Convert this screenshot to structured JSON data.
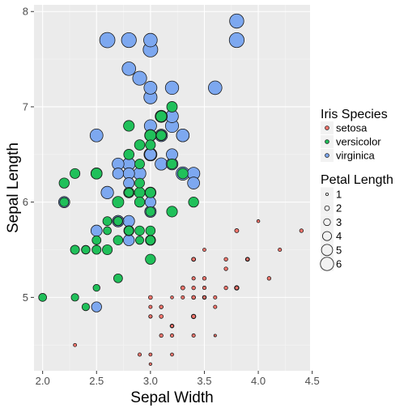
{
  "chart_data": {
    "type": "scatter",
    "title": "",
    "xlabel": "Sepal Width",
    "ylabel": "Sepal Length",
    "xlim": [
      1.92,
      4.48
    ],
    "ylim": [
      4.23,
      8.07
    ],
    "x_ticks": [
      "2.0",
      "2.5",
      "3.0",
      "3.5",
      "4.0",
      "4.5"
    ],
    "y_ticks": [
      "5",
      "6",
      "7",
      "8"
    ],
    "grid": true,
    "panel_background": "#ebebeb",
    "legend_placement": "right",
    "size_by": "Petal Length",
    "fill_legend": {
      "title": "Iris Species",
      "entries": [
        "setosa",
        "versicolor",
        "virginica"
      ]
    },
    "size_legend": {
      "title": "Petal Length",
      "entries": [
        "1",
        "2",
        "3",
        "4",
        "5",
        "6"
      ]
    },
    "series": [
      {
        "name": "setosa",
        "color": "#f8766d",
        "points": [
          [
            3.5,
            5.1,
            1.4
          ],
          [
            3.0,
            4.9,
            1.4
          ],
          [
            3.2,
            4.7,
            1.3
          ],
          [
            3.1,
            4.6,
            1.5
          ],
          [
            3.6,
            5.0,
            1.4
          ],
          [
            3.9,
            5.4,
            1.7
          ],
          [
            3.4,
            4.6,
            1.4
          ],
          [
            3.4,
            5.0,
            1.5
          ],
          [
            2.9,
            4.4,
            1.4
          ],
          [
            3.1,
            4.9,
            1.5
          ],
          [
            3.7,
            5.4,
            1.5
          ],
          [
            3.4,
            4.8,
            1.6
          ],
          [
            3.0,
            4.8,
            1.4
          ],
          [
            3.0,
            4.3,
            1.1
          ],
          [
            4.0,
            5.8,
            1.2
          ],
          [
            4.4,
            5.7,
            1.5
          ],
          [
            3.9,
            5.4,
            1.3
          ],
          [
            3.5,
            5.1,
            1.4
          ],
          [
            3.8,
            5.7,
            1.7
          ],
          [
            3.8,
            5.1,
            1.5
          ],
          [
            3.4,
            5.4,
            1.7
          ],
          [
            3.7,
            5.1,
            1.5
          ],
          [
            3.6,
            4.6,
            1.0
          ],
          [
            3.3,
            5.1,
            1.7
          ],
          [
            3.4,
            4.8,
            1.9
          ],
          [
            3.0,
            5.0,
            1.6
          ],
          [
            3.4,
            5.0,
            1.6
          ],
          [
            3.5,
            5.2,
            1.5
          ],
          [
            3.4,
            5.2,
            1.4
          ],
          [
            3.2,
            4.7,
            1.6
          ],
          [
            3.1,
            4.8,
            1.6
          ],
          [
            3.4,
            5.4,
            1.5
          ],
          [
            4.1,
            5.2,
            1.5
          ],
          [
            4.2,
            5.5,
            1.4
          ],
          [
            3.1,
            4.9,
            1.5
          ],
          [
            3.2,
            5.0,
            1.2
          ],
          [
            3.5,
            5.5,
            1.3
          ],
          [
            3.6,
            4.9,
            1.4
          ],
          [
            3.0,
            4.4,
            1.3
          ],
          [
            3.4,
            5.1,
            1.5
          ],
          [
            3.5,
            5.0,
            1.3
          ],
          [
            2.3,
            4.5,
            1.3
          ],
          [
            3.2,
            4.4,
            1.3
          ],
          [
            3.5,
            5.0,
            1.6
          ],
          [
            3.8,
            5.1,
            1.9
          ],
          [
            3.0,
            4.8,
            1.4
          ],
          [
            3.8,
            5.1,
            1.6
          ],
          [
            3.2,
            4.6,
            1.4
          ],
          [
            3.7,
            5.3,
            1.5
          ],
          [
            3.3,
            5.0,
            1.4
          ]
        ]
      },
      {
        "name": "versicolor",
        "color": "#20c05a",
        "points": [
          [
            3.2,
            7.0,
            4.7
          ],
          [
            3.2,
            6.4,
            4.5
          ],
          [
            3.1,
            6.9,
            4.9
          ],
          [
            2.3,
            5.5,
            4.0
          ],
          [
            2.8,
            6.5,
            4.6
          ],
          [
            2.8,
            5.7,
            4.5
          ],
          [
            3.3,
            6.3,
            4.7
          ],
          [
            2.4,
            4.9,
            3.3
          ],
          [
            2.9,
            6.6,
            4.6
          ],
          [
            2.7,
            5.2,
            3.9
          ],
          [
            2.0,
            5.0,
            3.5
          ],
          [
            3.0,
            5.9,
            4.2
          ],
          [
            2.2,
            6.0,
            4.0
          ],
          [
            2.9,
            6.1,
            4.7
          ],
          [
            2.9,
            5.6,
            3.6
          ],
          [
            3.1,
            6.7,
            4.4
          ],
          [
            3.0,
            5.6,
            4.5
          ],
          [
            2.7,
            5.8,
            4.1
          ],
          [
            2.2,
            6.2,
            4.5
          ],
          [
            2.5,
            5.6,
            3.9
          ],
          [
            3.2,
            5.9,
            4.8
          ],
          [
            2.8,
            6.1,
            4.0
          ],
          [
            2.5,
            6.3,
            4.9
          ],
          [
            2.8,
            6.1,
            4.7
          ],
          [
            2.9,
            6.4,
            4.3
          ],
          [
            3.0,
            6.6,
            4.4
          ],
          [
            2.8,
            6.8,
            4.8
          ],
          [
            3.0,
            6.7,
            5.0
          ],
          [
            2.9,
            6.0,
            4.5
          ],
          [
            2.6,
            5.7,
            3.5
          ],
          [
            2.4,
            5.5,
            3.8
          ],
          [
            2.4,
            5.5,
            3.7
          ],
          [
            2.7,
            5.8,
            3.9
          ],
          [
            2.7,
            6.0,
            5.1
          ],
          [
            3.0,
            5.4,
            4.5
          ],
          [
            3.4,
            6.0,
            4.5
          ],
          [
            3.1,
            6.7,
            4.7
          ],
          [
            2.3,
            6.3,
            4.4
          ],
          [
            3.0,
            5.6,
            4.1
          ],
          [
            2.5,
            5.5,
            4.0
          ],
          [
            2.6,
            5.5,
            4.4
          ],
          [
            3.0,
            6.1,
            4.6
          ],
          [
            2.6,
            5.8,
            4.0
          ],
          [
            2.3,
            5.0,
            3.3
          ],
          [
            2.7,
            5.6,
            4.2
          ],
          [
            3.0,
            5.7,
            4.2
          ],
          [
            2.9,
            5.7,
            4.2
          ],
          [
            2.9,
            6.2,
            4.3
          ],
          [
            2.5,
            5.1,
            3.0
          ],
          [
            2.8,
            5.7,
            4.1
          ]
        ]
      },
      {
        "name": "virginica",
        "color": "#7da8f0",
        "points": [
          [
            3.3,
            6.3,
            6.0
          ],
          [
            2.7,
            5.8,
            5.1
          ],
          [
            3.0,
            7.1,
            5.9
          ],
          [
            2.9,
            6.3,
            5.6
          ],
          [
            3.0,
            6.5,
            5.8
          ],
          [
            3.0,
            7.6,
            6.6
          ],
          [
            2.5,
            4.9,
            4.5
          ],
          [
            2.9,
            7.3,
            6.3
          ],
          [
            2.5,
            6.7,
            5.8
          ],
          [
            3.6,
            7.2,
            6.1
          ],
          [
            3.2,
            6.5,
            5.1
          ],
          [
            2.7,
            6.4,
            5.3
          ],
          [
            3.0,
            6.8,
            5.5
          ],
          [
            2.5,
            5.7,
            5.0
          ],
          [
            2.8,
            5.8,
            5.1
          ],
          [
            3.2,
            6.4,
            5.3
          ],
          [
            3.0,
            6.5,
            5.5
          ],
          [
            3.8,
            7.7,
            6.7
          ],
          [
            2.6,
            7.7,
            6.9
          ],
          [
            2.2,
            6.0,
            5.0
          ],
          [
            3.2,
            6.9,
            5.7
          ],
          [
            2.8,
            5.6,
            4.9
          ],
          [
            2.8,
            7.7,
            6.7
          ],
          [
            2.7,
            6.3,
            4.9
          ],
          [
            3.3,
            6.7,
            5.7
          ],
          [
            3.2,
            7.2,
            6.0
          ],
          [
            2.8,
            6.2,
            4.8
          ],
          [
            3.0,
            6.1,
            4.9
          ],
          [
            2.8,
            6.4,
            5.6
          ],
          [
            3.0,
            7.2,
            5.8
          ],
          [
            2.8,
            7.4,
            6.1
          ],
          [
            3.8,
            7.9,
            6.4
          ],
          [
            2.8,
            6.4,
            5.6
          ],
          [
            2.8,
            6.3,
            5.1
          ],
          [
            2.6,
            6.1,
            5.6
          ],
          [
            3.0,
            7.7,
            6.1
          ],
          [
            3.4,
            6.3,
            5.6
          ],
          [
            3.1,
            6.4,
            5.5
          ],
          [
            3.0,
            6.0,
            4.8
          ],
          [
            3.1,
            6.9,
            5.4
          ],
          [
            3.1,
            6.7,
            5.6
          ],
          [
            3.1,
            6.9,
            5.1
          ],
          [
            2.7,
            5.8,
            5.1
          ],
          [
            3.2,
            6.8,
            5.9
          ],
          [
            3.3,
            6.7,
            5.7
          ],
          [
            3.0,
            6.7,
            5.2
          ],
          [
            2.5,
            6.3,
            5.0
          ],
          [
            3.0,
            6.5,
            5.2
          ],
          [
            3.4,
            6.2,
            5.4
          ],
          [
            3.0,
            5.9,
            5.1
          ]
        ]
      }
    ]
  }
}
